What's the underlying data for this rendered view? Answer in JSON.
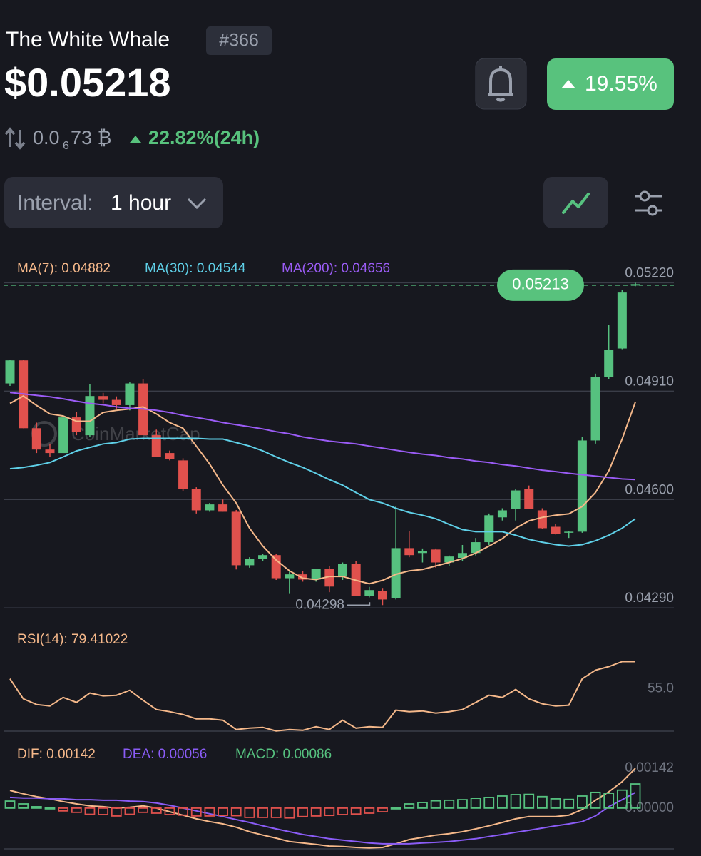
{
  "header": {
    "name": "The White Whale",
    "rank": "#366",
    "price": "$0.05218",
    "change": "19.55%",
    "btc_price_prefix": "0.0",
    "btc_price_zeros": "6",
    "btc_price_rest": "73 ₿",
    "change_24h": "22.82%(24h)"
  },
  "controls": {
    "interval_label": "Interval:",
    "interval_value": "1 hour"
  },
  "chart_data": [
    {
      "type": "candlestick",
      "up_color": "#56c17f",
      "down_color": "#e0514d",
      "watermark": "CoinMarketCap",
      "open": [
        0.04932,
        0.04998,
        0.04804,
        0.04743,
        0.04733,
        0.04835,
        0.04784,
        0.04896,
        0.04885,
        0.0487,
        0.04932,
        0.04784,
        0.04733,
        0.04712,
        0.04631,
        0.04569,
        0.04586,
        0.04565,
        0.04412,
        0.04431,
        0.04441,
        0.04375,
        0.04386,
        0.04371,
        0.04402,
        0.0438,
        0.04416,
        0.04325,
        0.04339,
        0.04318,
        0.04461,
        0.04447,
        0.04457,
        0.0442,
        0.04433,
        0.04447,
        0.04478,
        0.04549,
        0.04573,
        0.04631,
        0.04569,
        0.04522,
        0.04508,
        0.04508,
        0.04769,
        0.04951,
        0.05032,
        0.05212
      ],
      "high": [
        0.05,
        0.05,
        0.0482,
        0.0476,
        0.0484,
        0.0485,
        0.0493,
        0.04905,
        0.04895,
        0.04935,
        0.04945,
        0.048,
        0.0474,
        0.04718,
        0.04635,
        0.0459,
        0.046,
        0.0457,
        0.04435,
        0.04445,
        0.04445,
        0.04395,
        0.04395,
        0.04402,
        0.0441,
        0.0442,
        0.04425,
        0.0435,
        0.04345,
        0.0458,
        0.0451,
        0.0446,
        0.0446,
        0.0444,
        0.0447,
        0.0449,
        0.0456,
        0.04575,
        0.0463,
        0.0464,
        0.04575,
        0.0453,
        0.0451,
        0.0478,
        0.0496,
        0.051,
        0.052,
        0.0522
      ],
      "low": [
        0.04925,
        0.04804,
        0.04733,
        0.04722,
        0.04733,
        0.04784,
        0.0478,
        0.04875,
        0.0486,
        0.04855,
        0.04784,
        0.04722,
        0.04712,
        0.04625,
        0.0456,
        0.04565,
        0.04565,
        0.044,
        0.04405,
        0.04425,
        0.0437,
        0.0433,
        0.04365,
        0.04365,
        0.04335,
        0.0437,
        0.04325,
        0.0432,
        0.04298,
        0.04314,
        0.04435,
        0.0442,
        0.04405,
        0.0441,
        0.04425,
        0.0444,
        0.0447,
        0.0454,
        0.0454,
        0.04573,
        0.04515,
        0.045,
        0.0449,
        0.04505,
        0.0476,
        0.04945,
        0.0503,
        0.0521
      ],
      "close": [
        0.04998,
        0.04804,
        0.04743,
        0.04733,
        0.04835,
        0.04794,
        0.04896,
        0.04885,
        0.0487,
        0.04932,
        0.04784,
        0.04722,
        0.04716,
        0.04631,
        0.04569,
        0.04586,
        0.04565,
        0.04412,
        0.04431,
        0.04441,
        0.04375,
        0.04386,
        0.04371,
        0.04402,
        0.04351,
        0.04416,
        0.04325,
        0.04341,
        0.04314,
        0.04461,
        0.04441,
        0.04453,
        0.0442,
        0.04437,
        0.04447,
        0.04478,
        0.04555,
        0.04569,
        0.04626,
        0.04573,
        0.04518,
        0.04502,
        0.04508,
        0.04769,
        0.04951,
        0.05028,
        0.05192,
        0.05216
      ],
      "series": [
        {
          "name": "MA(7): 0.04882",
          "color": "#f5b88a",
          "values": [
            0.04875,
            0.04896,
            0.04869,
            0.04845,
            0.04839,
            0.04824,
            0.04824,
            0.04849,
            0.04855,
            0.04859,
            0.04865,
            0.04845,
            0.0482,
            0.04804,
            0.04753,
            0.04702,
            0.04641,
            0.0459,
            0.04518,
            0.04467,
            0.04427,
            0.04396,
            0.04375,
            0.04371,
            0.0438,
            0.0438,
            0.04369,
            0.04359,
            0.04369,
            0.04386,
            0.04396,
            0.044,
            0.0441,
            0.0442,
            0.04431,
            0.04447,
            0.04467,
            0.04488,
            0.04518,
            0.04539,
            0.04549,
            0.04555,
            0.04559,
            0.0458,
            0.0462,
            0.04682,
            0.04773,
            0.04879
          ]
        },
        {
          "name": "MA(30): 0.04544",
          "color": "#5fd0e8",
          "values": [
            0.04688,
            0.04692,
            0.04698,
            0.04706,
            0.04722,
            0.04739,
            0.04749,
            0.04759,
            0.04763,
            0.04773,
            0.04775,
            0.04775,
            0.04775,
            0.04775,
            0.04775,
            0.04773,
            0.04773,
            0.04763,
            0.04753,
            0.04739,
            0.04722,
            0.04706,
            0.04692,
            0.04675,
            0.04657,
            0.04641,
            0.0462,
            0.046,
            0.0459,
            0.04575,
            0.04563,
            0.04555,
            0.04545,
            0.04529,
            0.04514,
            0.04508,
            0.04508,
            0.04508,
            0.04498,
            0.04486,
            0.04478,
            0.04471,
            0.04467,
            0.04471,
            0.04482,
            0.04498,
            0.04518,
            0.04545
          ]
        },
        {
          "name": "MA(200): 0.04656",
          "color": "#9b5cf6",
          "values": [
            0.04906,
            0.04902,
            0.04898,
            0.04894,
            0.04888,
            0.04881,
            0.04875,
            0.04871,
            0.04865,
            0.04861,
            0.04859,
            0.04855,
            0.04849,
            0.04841,
            0.04835,
            0.04828,
            0.0482,
            0.04814,
            0.04808,
            0.04802,
            0.04794,
            0.04788,
            0.04779,
            0.04773,
            0.04767,
            0.04763,
            0.04759,
            0.04753,
            0.04747,
            0.04741,
            0.04735,
            0.0473,
            0.04726,
            0.0472,
            0.04716,
            0.0471,
            0.04706,
            0.047,
            0.04696,
            0.0469,
            0.04684,
            0.0468,
            0.04675,
            0.04671,
            0.04667,
            0.04663,
            0.04659,
            0.04657
          ]
        }
      ],
      "ylim": [
        0.0427,
        0.0528
      ],
      "yticks": [
        {
          "value": 0.0522,
          "label": "0.05220"
        },
        {
          "value": 0.0491,
          "label": "0.04910"
        },
        {
          "value": 0.046,
          "label": "0.04600"
        },
        {
          "value": 0.0429,
          "label": "0.04290"
        }
      ],
      "grid": true,
      "current_price": 0.05213,
      "low_annotation": 0.04298
    },
    {
      "type": "line",
      "series": [
        {
          "name": "RSI(14): 79.41022",
          "color": "#f5b88a",
          "values": [
            64.0,
            46.0,
            40.9,
            39.6,
            47.3,
            42.8,
            51.2,
            48.6,
            49.2,
            53.7,
            44.7,
            36.4,
            34.5,
            31.9,
            28.1,
            28.1,
            26.8,
            18.5,
            19.7,
            20.4,
            17.2,
            18.5,
            17.8,
            21.0,
            18.5,
            26.8,
            19.7,
            21.0,
            20.4,
            35.8,
            34.5,
            35.1,
            33.2,
            34.5,
            36.4,
            42.8,
            49.2,
            47.3,
            54.4,
            46.0,
            41.5,
            39.6,
            40.3,
            64.0,
            71.7,
            74.9,
            79.4,
            79.41
          ]
        }
      ],
      "ylim": [
        17,
        81
      ],
      "yticks": [
        {
          "value": 55,
          "label": "55.0"
        }
      ]
    },
    {
      "type": "macd",
      "series": [
        {
          "name": "DIF: 0.00142",
          "color": "#f5b88a",
          "kind": "line",
          "values": [
            0.00063,
            0.00051,
            0.00041,
            0.00033,
            0.00023,
            0.00015,
            8e-05,
            5e-05,
            0,
            3e-05,
            8e-05,
            0,
            -0.00013,
            -0.00025,
            -0.00038,
            -0.00048,
            -0.00056,
            -0.00068,
            -0.00084,
            -0.00096,
            -0.00107,
            -0.00119,
            -0.00124,
            -0.00129,
            -0.00135,
            -0.00137,
            -0.0014,
            -0.00142,
            -0.0014,
            -0.00127,
            -0.00112,
            -0.00104,
            -0.00096,
            -0.00091,
            -0.00084,
            -0.00074,
            -0.00063,
            -0.00051,
            -0.00038,
            -0.0003,
            -0.0003,
            -0.0003,
            -0.00025,
            -5e-05,
            0.00028,
            0.00058,
            0.00094,
            0.00142
          ]
        },
        {
          "name": "DEA: 0.00056",
          "color": "#8a5cf6",
          "kind": "line",
          "values": [
            0.00038,
            0.00036,
            0.00036,
            0.00033,
            0.00033,
            0.0003,
            0.0003,
            0.00028,
            0.00028,
            0.00025,
            0.00023,
            0.00018,
            0.0001,
            0,
            -0.0001,
            -0.0002,
            -0.0003,
            -0.00041,
            -0.00051,
            -0.00063,
            -0.00074,
            -0.00084,
            -0.00094,
            -0.00101,
            -0.00109,
            -0.00114,
            -0.00119,
            -0.00124,
            -0.00127,
            -0.00127,
            -0.00127,
            -0.00124,
            -0.00122,
            -0.00119,
            -0.00114,
            -0.00109,
            -0.00101,
            -0.00094,
            -0.00086,
            -0.00079,
            -0.00071,
            -0.00063,
            -0.00056,
            -0.00048,
            -0.00028,
            5e-05,
            0.0003,
            0.00056
          ]
        },
        {
          "name": "MACD: 0.00086",
          "color": "#56c17f",
          "down_color": "#e0514d",
          "kind": "bar",
          "values": [
            0.00025,
            0.00015,
            5e-05,
            0,
            -0.0001,
            -0.00015,
            -0.00022,
            -0.00023,
            -0.00028,
            -0.00022,
            -0.00015,
            -0.00018,
            -0.00023,
            -0.00025,
            -0.00028,
            -0.00028,
            -0.00026,
            -0.00027,
            -0.00033,
            -0.00033,
            -0.00033,
            -0.00035,
            -0.0003,
            -0.00028,
            -0.00026,
            -0.00023,
            -0.00021,
            -0.00018,
            -0.00013,
            0,
            0.00015,
            0.0002,
            0.00026,
            0.00028,
            0.0003,
            0.00035,
            0.00038,
            0.00043,
            0.00048,
            0.00049,
            0.00041,
            0.00033,
            0.00031,
            0.00043,
            0.00056,
            0.00053,
            0.00064,
            0.00086
          ]
        }
      ],
      "ylim": [
        -0.00145,
        0.00175
      ],
      "yticks": [
        0.00142,
        {
          "value": 0,
          "label": "0.00000"
        }
      ]
    }
  ]
}
